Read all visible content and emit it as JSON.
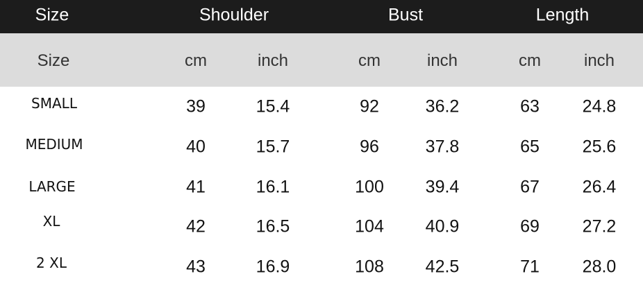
{
  "header": {
    "columns": [
      "Size",
      "Shoulder",
      "Bust",
      "Length"
    ]
  },
  "subheader": [
    "Size",
    "cm",
    "inch",
    "cm",
    "inch",
    "cm",
    "inch"
  ],
  "table": {
    "rows": [
      [
        "SMALL",
        "39",
        "15.4",
        "92",
        "36.2",
        "63",
        "24.8"
      ],
      [
        "MEDIUM",
        "40",
        "15.7",
        "96",
        "37.8",
        "65",
        "25.6"
      ],
      [
        "LARGE",
        "41",
        "16.1",
        "100",
        "39.4",
        "67",
        "26.4"
      ],
      [
        "XL",
        "42",
        "16.5",
        "104",
        "40.9",
        "69",
        "27.2"
      ],
      [
        "2 XL",
        "43",
        "16.9",
        "108",
        "42.5",
        "71",
        "28.0"
      ]
    ]
  }
}
